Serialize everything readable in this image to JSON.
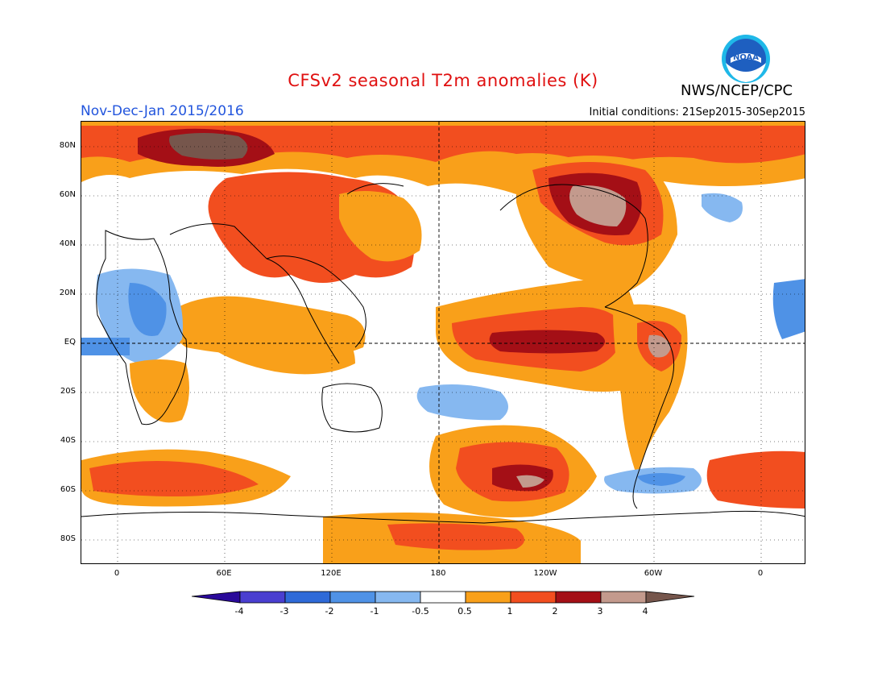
{
  "header": {
    "title": "CFSv2 seasonal T2m anomalies (K)",
    "agency": "NWS/NCEP/CPC",
    "logo_text": "NOAA",
    "season": "Nov-Dec-Jan 2015/2016",
    "initial_conditions": "Initial conditions: 21Sep2015-30Sep2015"
  },
  "map": {
    "projection": "equirectangular, centered on 180",
    "lat_labels": [
      "80N",
      "60N",
      "40N",
      "20N",
      "EQ",
      "20S",
      "40S",
      "60S",
      "80S"
    ],
    "lon_labels": [
      "0",
      "60E",
      "120E",
      "180",
      "120W",
      "60W",
      "0"
    ],
    "grid": "dotted, reference lines at Equator and 180 dashed"
  },
  "colorbar": {
    "labels": [
      "-4",
      "-3",
      "-2",
      "-1",
      "-0.5",
      "0.5",
      "1",
      "2",
      "3",
      "4"
    ],
    "colors": [
      "#2a0a9a",
      "#4a3fd0",
      "#2f6ad8",
      "#4f92e6",
      "#86b8f0",
      "#ffffff",
      "#f9a01a",
      "#f24e1f",
      "#a40f16",
      "#c39a8d",
      "#76564c"
    ]
  },
  "colors": {
    "title": "#e01010",
    "season": "#2255dd",
    "noaa_blue": "#1e5fc0"
  }
}
